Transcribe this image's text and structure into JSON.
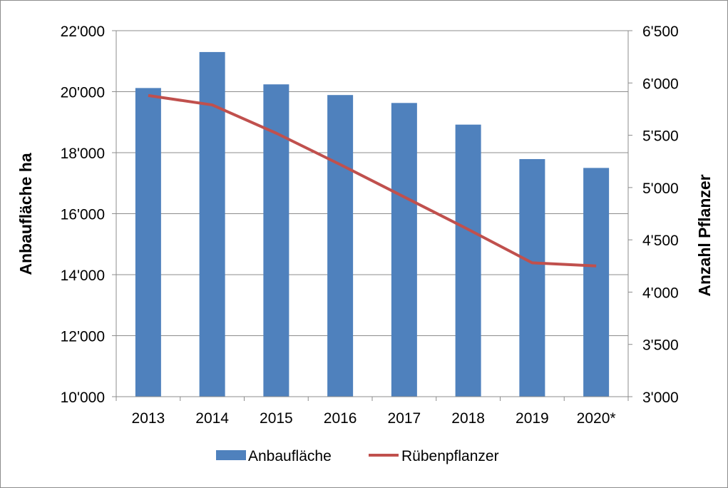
{
  "chart_data": {
    "type": "bar",
    "categories": [
      "2013",
      "2014",
      "2015",
      "2016",
      "2017",
      "2018",
      "2019",
      "2020*"
    ],
    "series": [
      {
        "name": "Anbaufläche",
        "type": "bar",
        "axis": "left",
        "color": "#4f81bd",
        "values": [
          20120,
          21300,
          20240,
          19890,
          19630,
          18920,
          17790,
          17500
        ]
      },
      {
        "name": "Rübenpflanzer",
        "type": "line",
        "axis": "right",
        "color": "#c0504d",
        "values": [
          5880,
          5790,
          5520,
          5220,
          4910,
          4600,
          4280,
          4250
        ]
      }
    ],
    "ylabel": "Anbaufläche ha",
    "y2label": "Anzahl Pflanzer",
    "ylim": [
      10000,
      22000
    ],
    "y2lim": [
      3000,
      6500
    ],
    "yticks": [
      "10'000",
      "12'000",
      "14'000",
      "16'000",
      "18'000",
      "20'000",
      "22'000"
    ],
    "y2ticks": [
      "3'000",
      "3'500",
      "4'000",
      "4'500",
      "5'000",
      "5'500",
      "6'000",
      "6'500"
    ],
    "grid": true,
    "legend": "bottom"
  }
}
